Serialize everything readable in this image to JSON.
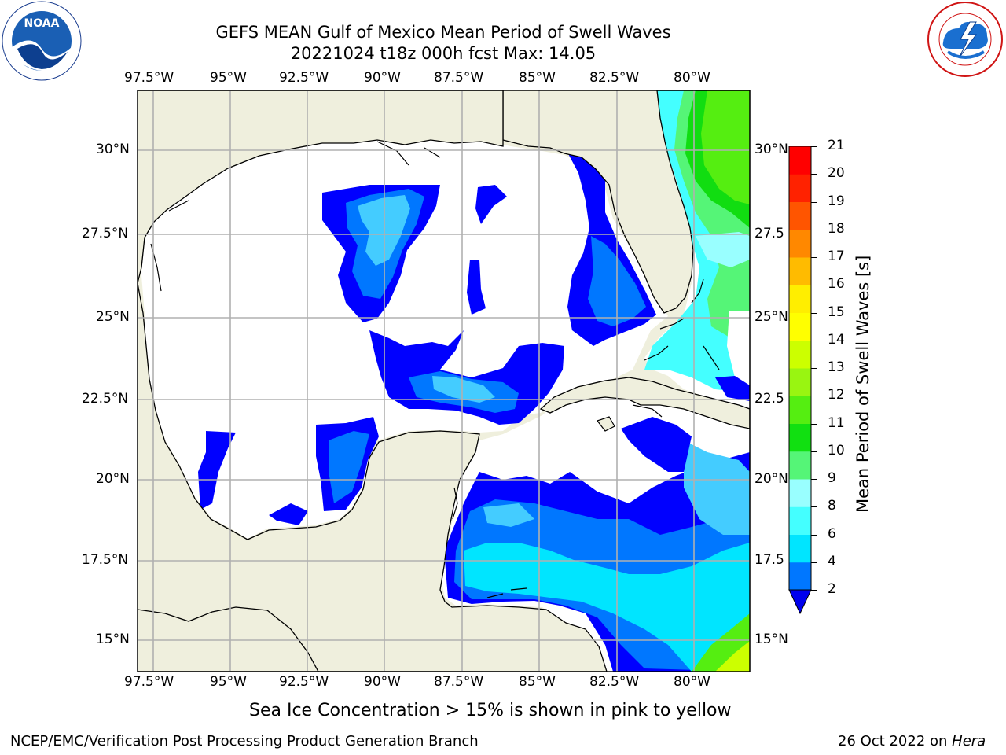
{
  "header": {
    "title_line1": "GEFS MEAN Gulf of Mexico Mean Period of Swell Waves",
    "title_line2": "20221024 t18z 000h fcst   Max: 14.05"
  },
  "logos": {
    "left": "NOAA",
    "left_ring": "NATIONAL OCEANIC AND ATMOSPHERIC ADMINISTRATION · U.S. DEPARTMENT OF COMMERCE",
    "right_ring": "NATIONAL WEATHER SERVICE"
  },
  "map": {
    "lon_labels": [
      "97.5°W",
      "95°W",
      "92.5°W",
      "90°W",
      "87.5°W",
      "85°W",
      "82.5°W",
      "80°W"
    ],
    "lat_labels_left": [
      "30°N",
      "27.5°N",
      "25°N",
      "22.5°N",
      "20°N",
      "17.5°N",
      "15°N"
    ],
    "lat_labels_right": [
      "30°N",
      "27.5",
      "25°N",
      "22.5",
      "20°N",
      "17.5",
      "15°N"
    ],
    "colors": {
      "land": "#efefdd",
      "ocean_nodata": "#ffffff",
      "grid": "#b0b0b0",
      "coast": "#000000"
    }
  },
  "colorbar": {
    "label": "Mean Period of Swell Waves [s]",
    "ticks": [
      "2",
      "4",
      "6",
      "8",
      "9",
      "10",
      "11",
      "12",
      "13",
      "14",
      "15",
      "16",
      "17",
      "18",
      "19",
      "20",
      "21"
    ],
    "colors": [
      "#0000ff",
      "#0077ff",
      "#00e5ff",
      "#44ffff",
      "#99ffff",
      "#55f577",
      "#11e011",
      "#55ee11",
      "#99f511",
      "#ccff00",
      "#ffff00",
      "#ffee00",
      "#ffbb00",
      "#ff8800",
      "#ff5500",
      "#ff2200",
      "#ff0000"
    ],
    "under_color": "#0000ee"
  },
  "footer": {
    "caption": "Sea Ice Concentration > 15% is shown in pink to yellow",
    "left": "NCEP/EMC/Verification Post Processing Product Generation Branch",
    "right_prefix": "26 Oct 2022 on ",
    "right_italic": "Hera"
  }
}
